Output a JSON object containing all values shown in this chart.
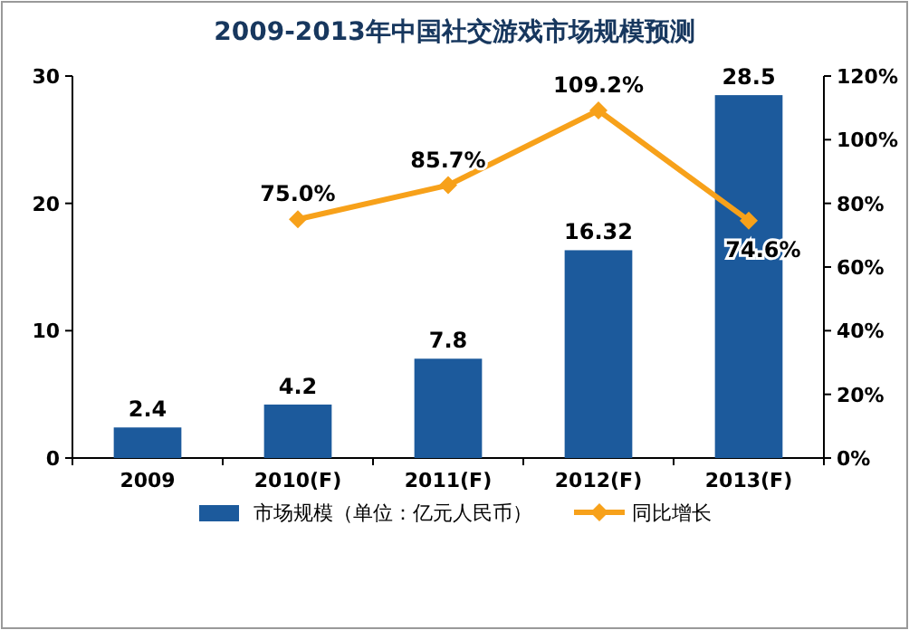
{
  "chart_data": {
    "type": "bar",
    "title": "2009-2013年中国社交游戏市场规模预测",
    "categories": [
      "2009",
      "2010(F)",
      "2011(F)",
      "2012(F)",
      "2013(F)"
    ],
    "series": [
      {
        "name": "市场规模（单位：亿元人民币）",
        "color": "#1c5a9c",
        "values": [
          2.4,
          4.2,
          7.8,
          16.32,
          28.5
        ],
        "value_labels": [
          "2.4",
          "4.2",
          "7.8",
          "16.32",
          "28.5"
        ]
      },
      {
        "name": "同比增长",
        "type": "line",
        "axis": "y2",
        "color": "#f7a11a",
        "values": [
          null,
          75.0,
          85.7,
          109.2,
          74.6
        ],
        "value_labels": [
          null,
          "75.0%",
          "85.7%",
          "109.2%",
          "74.6%"
        ]
      }
    ],
    "ylim": [
      0,
      30
    ],
    "yticks": [
      0,
      10,
      20,
      30
    ],
    "y2lim": [
      0,
      120
    ],
    "y2ticks": [
      {
        "value": 0,
        "label": "0%"
      },
      {
        "value": 20,
        "label": "20%"
      },
      {
        "value": 40,
        "label": "40%"
      },
      {
        "value": 60,
        "label": "60%"
      },
      {
        "value": 80,
        "label": "80%"
      },
      {
        "value": 100,
        "label": "100%"
      },
      {
        "value": 120,
        "label": "120%"
      }
    ],
    "marker": "diamond",
    "legend": "bottom"
  }
}
